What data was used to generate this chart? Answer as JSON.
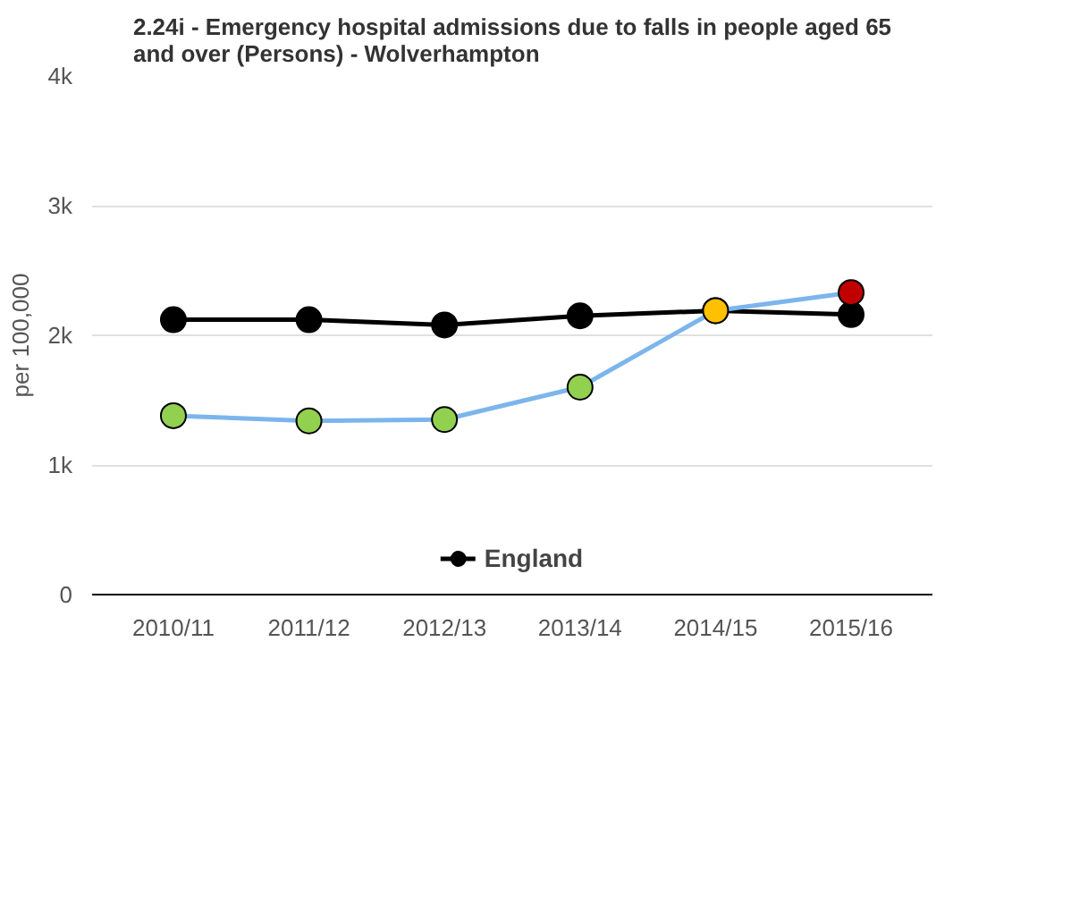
{
  "chart_data": {
    "type": "line",
    "title": "2.24i - Emergency hospital admissions due to falls in people aged 65\nand over (Persons) - Wolverhampton",
    "ylabel": "per 100,000",
    "categories": [
      "2010/11",
      "2011/12",
      "2012/13",
      "2013/14",
      "2014/15",
      "2015/16"
    ],
    "series": [
      {
        "color": "#7cb5ec",
        "colors": [
          "#92d050",
          "#92d050",
          "#92d050",
          "#92d050",
          "#ffc000",
          "#c00000"
        ],
        "values": [
          1380,
          1340,
          1350,
          1600,
          2190,
          2330
        ]
      },
      {
        "name": "England",
        "color": "#000000",
        "values": [
          2120,
          2120,
          2080,
          2150,
          2190,
          2160
        ]
      }
    ],
    "ylim": [
      0,
      4000
    ],
    "yticks": [
      {
        "value": 0,
        "label": "0"
      },
      {
        "value": 1000,
        "label": "1k"
      },
      {
        "value": 2000,
        "label": "2k"
      },
      {
        "value": 3000,
        "label": "3k"
      },
      {
        "value": 4000,
        "label": "4k"
      }
    ],
    "grid": "y",
    "legend": "bottom",
    "marker": "circle",
    "line_style": "solid"
  }
}
